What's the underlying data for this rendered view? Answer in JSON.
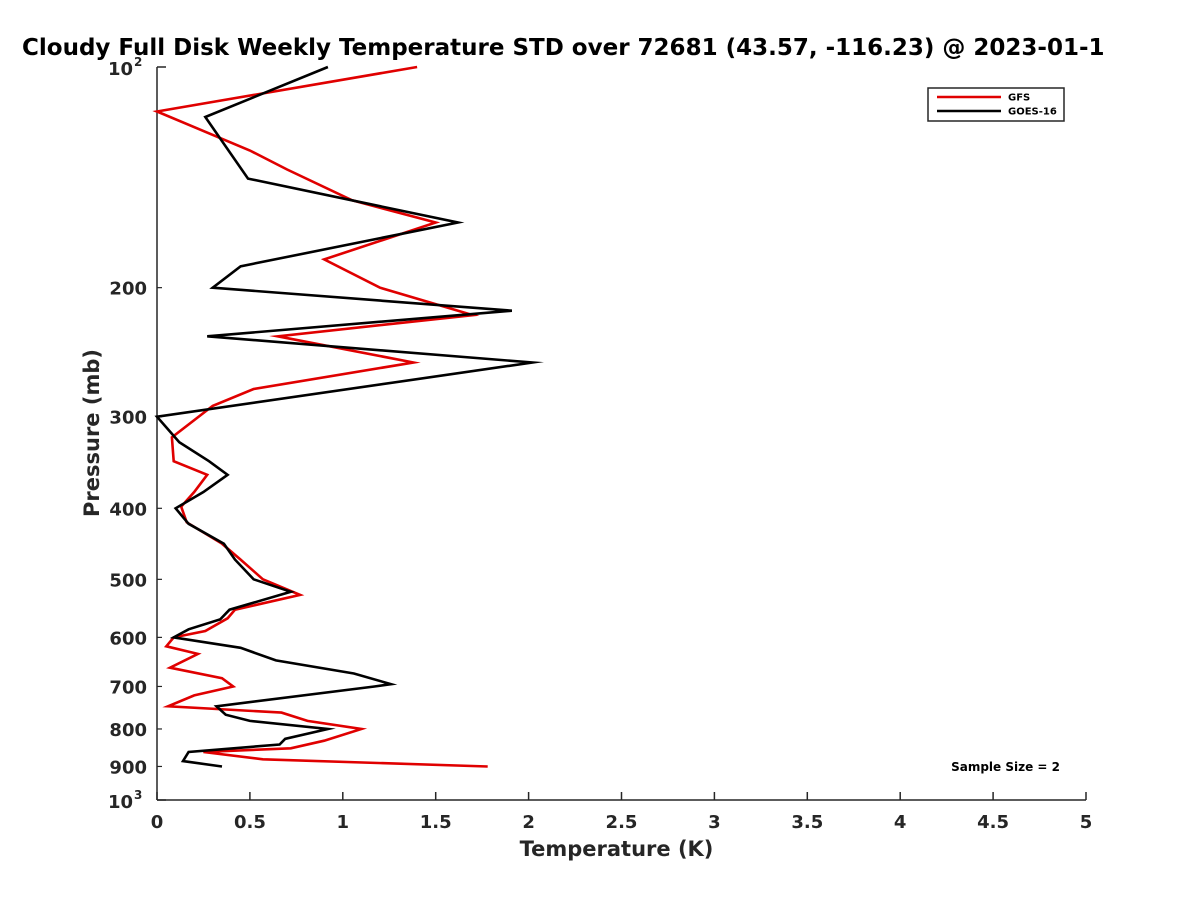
{
  "chart_data": {
    "type": "line",
    "title": "Cloudy Full Disk Weekly Temperature STD over 72681 (43.57, -116.23) @ 2023-01-1",
    "xlabel": "Temperature (K)",
    "ylabel": "Pressure (mb)",
    "xlim": [
      0,
      5
    ],
    "ylim": [
      100,
      1000
    ],
    "yscale": "log",
    "y_reversed": true,
    "x_ticks": [
      "0",
      "0.5",
      "1",
      "1.5",
      "2",
      "2.5",
      "3",
      "3.5",
      "4",
      "4.5",
      "5"
    ],
    "x_tick_values": [
      0,
      0.5,
      1,
      1.5,
      2,
      2.5,
      3,
      3.5,
      4,
      4.5,
      5
    ],
    "y_ticks": [
      "200",
      "300",
      "400",
      "500",
      "600",
      "700",
      "800",
      "900"
    ],
    "y_tick_values": [
      200,
      300,
      400,
      500,
      600,
      700,
      800,
      900
    ],
    "y_top_label": {
      "base": "10",
      "exp": "2"
    },
    "y_bottom_label": {
      "base": "10",
      "exp": "3"
    },
    "legend_position": "top-right",
    "grid": false,
    "series": [
      {
        "name": "GFS",
        "color": "#e00000",
        "points": [
          [
            1.4,
            100
          ],
          [
            0.0,
            115
          ],
          [
            0.5,
            130
          ],
          [
            0.7,
            138
          ],
          [
            1.05,
            152
          ],
          [
            1.5,
            163
          ],
          [
            0.9,
            183
          ],
          [
            1.2,
            200
          ],
          [
            1.7,
            218
          ],
          [
            0.65,
            233
          ],
          [
            1.38,
            253
          ],
          [
            0.52,
            275
          ],
          [
            0.3,
            290
          ],
          [
            0.08,
            320
          ],
          [
            0.09,
            345
          ],
          [
            0.27,
            360
          ],
          [
            0.2,
            380
          ],
          [
            0.13,
            398
          ],
          [
            0.16,
            418
          ],
          [
            0.35,
            447
          ],
          [
            0.45,
            470
          ],
          [
            0.57,
            500
          ],
          [
            0.77,
            525
          ],
          [
            0.42,
            550
          ],
          [
            0.38,
            565
          ],
          [
            0.26,
            588
          ],
          [
            0.09,
            600
          ],
          [
            0.05,
            617
          ],
          [
            0.22,
            632
          ],
          [
            0.07,
            660
          ],
          [
            0.35,
            682
          ],
          [
            0.41,
            700
          ],
          [
            0.2,
            720
          ],
          [
            0.06,
            745
          ],
          [
            0.67,
            760
          ],
          [
            0.81,
            780
          ],
          [
            1.1,
            800
          ],
          [
            0.9,
            830
          ],
          [
            0.72,
            850
          ],
          [
            0.25,
            860
          ],
          [
            0.57,
            880
          ],
          [
            1.78,
            900
          ]
        ]
      },
      {
        "name": "GOES-16",
        "color": "#000000",
        "points": [
          [
            0.92,
            100
          ],
          [
            0.26,
            117
          ],
          [
            0.49,
            142
          ],
          [
            1.62,
            163
          ],
          [
            0.45,
            187
          ],
          [
            0.3,
            200
          ],
          [
            1.91,
            215
          ],
          [
            0.27,
            233
          ],
          [
            2.02,
            253
          ],
          [
            0.0,
            300
          ],
          [
            0.12,
            325
          ],
          [
            0.28,
            345
          ],
          [
            0.38,
            360
          ],
          [
            0.25,
            380
          ],
          [
            0.1,
            400
          ],
          [
            0.17,
            420
          ],
          [
            0.36,
            447
          ],
          [
            0.42,
            470
          ],
          [
            0.52,
            500
          ],
          [
            0.72,
            520
          ],
          [
            0.39,
            550
          ],
          [
            0.34,
            567
          ],
          [
            0.17,
            585
          ],
          [
            0.09,
            600
          ],
          [
            0.45,
            620
          ],
          [
            0.64,
            645
          ],
          [
            1.06,
            672
          ],
          [
            1.26,
            695
          ],
          [
            1.17,
            700
          ],
          [
            0.32,
            745
          ],
          [
            0.37,
            765
          ],
          [
            0.5,
            780
          ],
          [
            0.92,
            800
          ],
          [
            0.69,
            825
          ],
          [
            0.66,
            840
          ],
          [
            0.17,
            860
          ],
          [
            0.14,
            885
          ],
          [
            0.35,
            900
          ]
        ]
      }
    ],
    "annotation": "Sample Size = 2"
  }
}
